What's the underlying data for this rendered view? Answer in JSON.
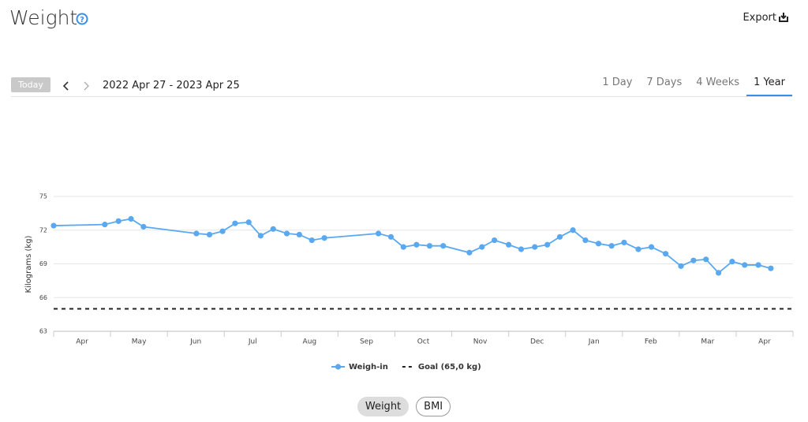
{
  "header": {
    "title": "Weight",
    "export": "Export"
  },
  "toolbar": {
    "today": "Today",
    "range": "2022 Apr 27 - 2023 Apr 25",
    "tabs": [
      "1 Day",
      "7 Days",
      "4 Weeks",
      "1 Year"
    ]
  },
  "chart_data": {
    "type": "line",
    "y_label": "Kilograms (kg)",
    "categories": [
      "Apr",
      "May",
      "Jun",
      "Jul",
      "Aug",
      "Sep",
      "Oct",
      "Nov",
      "Dec",
      "Jan",
      "Feb",
      "Mar",
      "Apr"
    ],
    "xlim": [
      0,
      13
    ],
    "x": [
      0,
      0.9,
      1.14,
      1.36,
      1.58,
      2.51,
      2.74,
      2.97,
      3.19,
      3.43,
      3.64,
      3.86,
      4.1,
      4.32,
      4.54,
      4.76,
      5.71,
      5.93,
      6.15,
      6.38,
      6.61,
      6.85,
      7.31,
      7.53,
      7.75,
      8.0,
      8.22,
      8.46,
      8.68,
      8.9,
      9.13,
      9.35,
      9.58,
      9.81,
      10.03,
      10.28,
      10.51,
      10.76,
      11.03,
      11.25,
      11.47,
      11.69,
      11.93,
      12.15,
      12.39,
      12.61
    ],
    "series": [
      {
        "name": "Weigh-in",
        "color": "#5aa9f0",
        "values": [
          72.4,
          72.5,
          72.8,
          73.0,
          72.3,
          71.7,
          71.6,
          71.9,
          72.6,
          72.7,
          71.5,
          72.1,
          71.7,
          71.6,
          71.1,
          71.3,
          71.7,
          71.4,
          70.5,
          70.7,
          70.6,
          70.6,
          70.0,
          70.5,
          71.1,
          70.7,
          70.3,
          70.5,
          70.7,
          71.4,
          72.0,
          71.1,
          70.8,
          70.6,
          70.9,
          70.3,
          70.5,
          69.9,
          68.8,
          69.3,
          69.4,
          68.2,
          69.2,
          68.9,
          68.9,
          68.6
        ]
      }
    ],
    "reference_lines": [
      {
        "name": "Goal (65,0 kg)",
        "value": 65,
        "color": "#222",
        "dashed": true
      }
    ],
    "ylim": [
      63,
      75
    ],
    "yticks": [
      63,
      66,
      69,
      72,
      75
    ],
    "grid": true
  },
  "toggle": [
    "Weight",
    "BMI"
  ]
}
